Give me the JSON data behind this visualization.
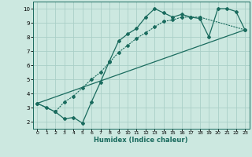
{
  "xlabel": "Humidex (Indice chaleur)",
  "bg_color": "#cce8e0",
  "line_color": "#1a6b5e",
  "grid_color": "#aacfc7",
  "xlim": [
    -0.5,
    23.5
  ],
  "ylim": [
    1.5,
    10.5
  ],
  "xticks": [
    0,
    1,
    2,
    3,
    4,
    5,
    6,
    7,
    8,
    9,
    10,
    11,
    12,
    13,
    14,
    15,
    16,
    17,
    18,
    19,
    20,
    21,
    22,
    23
  ],
  "yticks": [
    2,
    3,
    4,
    5,
    6,
    7,
    8,
    9,
    10
  ],
  "line1_x": [
    0,
    1,
    2,
    3,
    4,
    5,
    6,
    7,
    8,
    9,
    10,
    11,
    12,
    13,
    14,
    15,
    16,
    17,
    18,
    19,
    20,
    21,
    22,
    23
  ],
  "line1_y": [
    3.3,
    3.0,
    2.7,
    2.2,
    2.3,
    1.9,
    3.4,
    4.8,
    6.3,
    7.7,
    8.2,
    8.6,
    9.4,
    10.0,
    9.7,
    9.4,
    9.6,
    9.4,
    9.3,
    8.0,
    10.0,
    10.0,
    9.8,
    8.5
  ],
  "line2_x": [
    0,
    2,
    3,
    4,
    5,
    6,
    7,
    8,
    9,
    10,
    11,
    12,
    13,
    14,
    15,
    16,
    17,
    18,
    23
  ],
  "line2_y": [
    3.3,
    2.7,
    3.4,
    3.8,
    4.4,
    5.0,
    5.5,
    6.2,
    6.9,
    7.4,
    7.9,
    8.3,
    8.7,
    9.1,
    9.2,
    9.4,
    9.4,
    9.4,
    8.5
  ],
  "line3_x": [
    0,
    23
  ],
  "line3_y": [
    3.3,
    8.5
  ]
}
